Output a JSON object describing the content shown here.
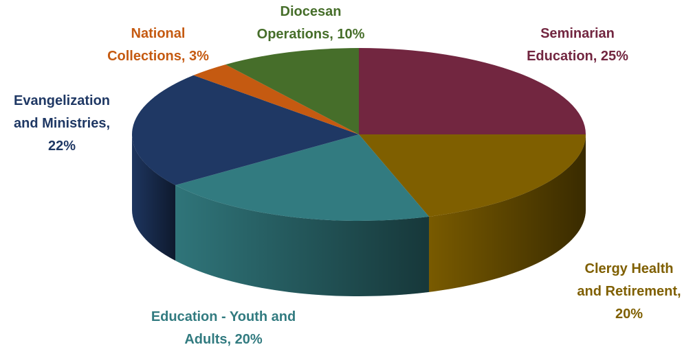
{
  "chart_data": {
    "type": "pie",
    "values": [
      25,
      20,
      20,
      22,
      3,
      10
    ],
    "value_labels": [
      "Seminarian Education, 25%",
      "Clergy Health and Retirement, 20%",
      "Education - Youth and Adults, 20%",
      "Evangelization and Ministries, 22%",
      "National Collections, 3%",
      "Diocesan Operations, 10%"
    ],
    "colors": [
      "#722640",
      "#7f5f00",
      "#327b80",
      "#1f3864",
      "#c55a11",
      "#466e2a"
    ]
  }
}
